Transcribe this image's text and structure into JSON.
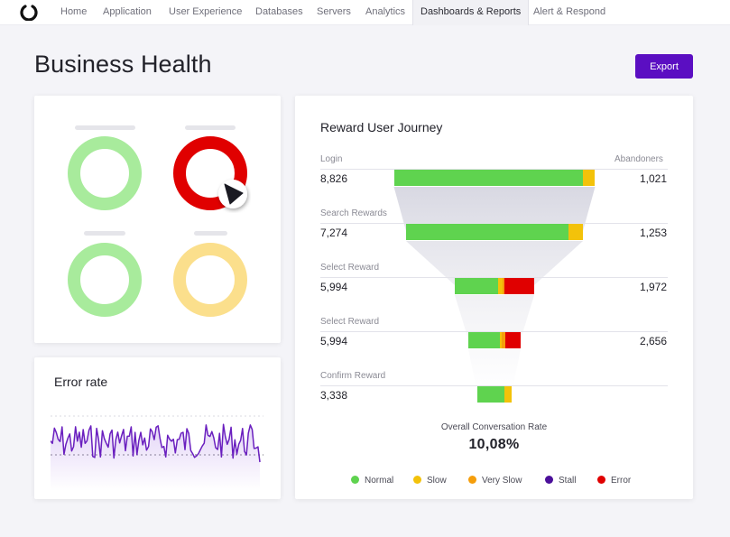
{
  "nav": {
    "logo_icon": "brand-logo-icon",
    "items": [
      {
        "label": "Home"
      },
      {
        "label": "Application"
      },
      {
        "label": "User Experience"
      },
      {
        "label": "Databases"
      },
      {
        "label": "Servers"
      },
      {
        "label": "Analytics"
      },
      {
        "label": "Dashboards & Reports",
        "active": true
      },
      {
        "label": "Alert & Respond"
      }
    ]
  },
  "page": {
    "title": "Business Health",
    "export_label": "Export",
    "accent_color": "#5b0ec2"
  },
  "health": {
    "rings": [
      {
        "status": "Normal",
        "color": "#a8eb9c"
      },
      {
        "status": "Error",
        "color": "#e00000"
      },
      {
        "status": "Normal",
        "color": "#a8eb9c"
      },
      {
        "status": "Slow",
        "color": "#fbdf8c"
      }
    ]
  },
  "error_rate": {
    "title": "Error rate"
  },
  "journey": {
    "title": "Reward User Journey",
    "abandoners_header": "Abandoners",
    "stages": [
      {
        "label": "Login",
        "value": "8,826",
        "abandoners": "1,021",
        "segments": {
          "normal": 0.94,
          "slow": 0.06,
          "very_slow": 0,
          "error": 0
        }
      },
      {
        "label": "Search Rewards",
        "value": "7,274",
        "abandoners": "1,253",
        "segments": {
          "normal": 0.92,
          "slow": 0.08,
          "very_slow": 0,
          "error": 0
        }
      },
      {
        "label": "Select Reward",
        "value": "5,994",
        "abandoners": "1,972",
        "segments": {
          "normal": 0.55,
          "slow": 0.05,
          "very_slow": 0.03,
          "error": 0.37
        }
      },
      {
        "label": "Select Reward",
        "value": "5,994",
        "abandoners": "2,656",
        "segments": {
          "normal": 0.6,
          "slow": 0.04,
          "very_slow": 0.06,
          "error": 0.3
        }
      },
      {
        "label": "Confirm Reward",
        "value": "3,338",
        "abandoners": "",
        "segments": {
          "normal": 0.8,
          "slow": 0.2,
          "very_slow": 0,
          "error": 0
        }
      }
    ],
    "overall_label": "Overall Conversation Rate",
    "overall_value": "10,08%"
  },
  "legend": [
    {
      "label": "Normal",
      "color": "#5fd34f"
    },
    {
      "label": "Slow",
      "color": "#f3c20a"
    },
    {
      "label": "Very Slow",
      "color": "#f59e0b"
    },
    {
      "label": "Stall",
      "color": "#4b0f9a"
    },
    {
      "label": "Error",
      "color": "#e00000"
    }
  ]
}
